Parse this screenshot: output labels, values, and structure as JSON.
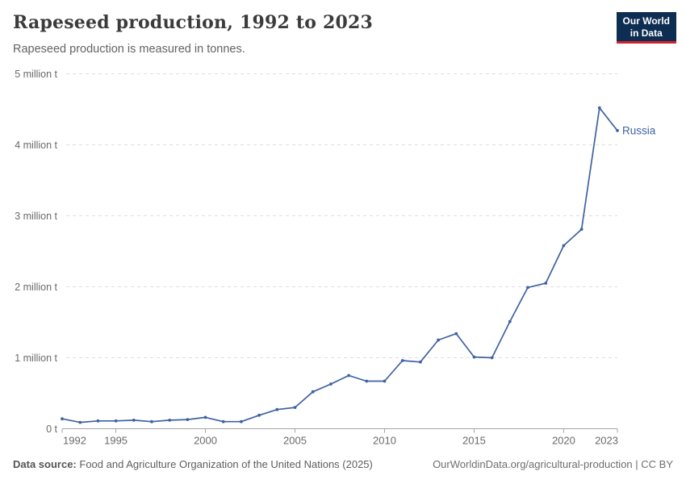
{
  "header": {
    "title": "Rapeseed production, 1992 to 2023",
    "subtitle": "Rapeseed production is measured in tonnes.",
    "logo": {
      "line1": "Our World",
      "line2": "in Data"
    }
  },
  "chart_data": {
    "type": "line",
    "title": "Rapeseed production, 1992 to 2023",
    "ylabel": "",
    "xlabel": "",
    "unit": "tonnes",
    "values_unit": "million tonnes",
    "grid": "horizontal-dashed",
    "legend_position": "end-of-line-label",
    "xlim": [
      1992,
      2023
    ],
    "ylim": [
      0,
      5
    ],
    "xticks": [
      1992,
      1995,
      2000,
      2005,
      2010,
      2015,
      2020,
      2023
    ],
    "yticks": [
      {
        "value": 0,
        "label": "0 t"
      },
      {
        "value": 1,
        "label": "1 million t"
      },
      {
        "value": 2,
        "label": "2 million t"
      },
      {
        "value": 3,
        "label": "3 million t"
      },
      {
        "value": 4,
        "label": "4 million t"
      },
      {
        "value": 5,
        "label": "5 million t"
      }
    ],
    "x": [
      1992,
      1993,
      1994,
      1995,
      1996,
      1997,
      1998,
      1999,
      2000,
      2001,
      2002,
      2003,
      2004,
      2005,
      2006,
      2007,
      2008,
      2009,
      2010,
      2011,
      2012,
      2013,
      2014,
      2015,
      2016,
      2017,
      2018,
      2019,
      2020,
      2021,
      2022,
      2023
    ],
    "series": [
      {
        "name": "Russia",
        "color": "#3e62a1",
        "values": [
          0.14,
          0.09,
          0.11,
          0.11,
          0.12,
          0.1,
          0.12,
          0.13,
          0.16,
          0.1,
          0.1,
          0.19,
          0.27,
          0.3,
          0.52,
          0.63,
          0.75,
          0.67,
          0.67,
          0.96,
          0.94,
          1.25,
          1.34,
          1.01,
          1.0,
          1.51,
          1.99,
          2.05,
          2.58,
          2.81,
          4.52,
          4.2
        ]
      }
    ]
  },
  "footer": {
    "source_label": "Data source:",
    "source_text": "Food and Agriculture Organization of the United Nations (2025)",
    "credit": "OurWorldinData.org/agricultural-production | CC BY"
  },
  "colors": {
    "line": "#3e62a1",
    "gridline": "#dedede",
    "axis": "#a5a5a5",
    "tick_label": "#6a6a6a",
    "logo_bg": "#0d2d52",
    "logo_accent": "#d0232a"
  }
}
